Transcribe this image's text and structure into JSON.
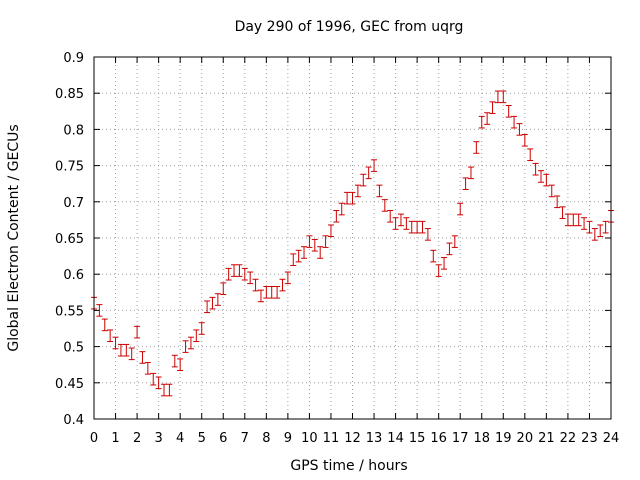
{
  "chart_data": {
    "type": "scatter",
    "title": "Day 290 of 1996, GEC from uqrg",
    "xlabel": "GPS time / hours",
    "ylabel": "Global Electron Content / GECUs",
    "xlim": [
      0,
      24
    ],
    "ylim": [
      0.4,
      0.9
    ],
    "xticks": [
      0,
      1,
      2,
      3,
      4,
      5,
      6,
      7,
      8,
      9,
      10,
      11,
      12,
      13,
      14,
      15,
      16,
      17,
      18,
      19,
      20,
      21,
      22,
      23,
      24
    ],
    "yticks": [
      0.4,
      0.45,
      0.5,
      0.55,
      0.6,
      0.65,
      0.7,
      0.75,
      0.8,
      0.85,
      0.9
    ],
    "grid": true,
    "marker": "error bars",
    "color": "#cc0000",
    "error": 0.008,
    "series": [
      {
        "x": [
          0,
          0.25,
          0.5,
          0.75,
          1,
          1.25,
          1.5,
          1.75,
          2,
          2.25,
          2.5,
          2.75,
          3,
          3.25,
          3.5,
          3.75,
          4,
          4.25,
          4.5,
          4.75,
          5,
          5.25,
          5.5,
          5.75,
          6,
          6.25,
          6.5,
          6.75,
          7,
          7.25,
          7.5,
          7.75,
          8,
          8.25,
          8.5,
          8.75,
          9,
          9.25,
          9.5,
          9.75,
          10,
          10.25,
          10.5,
          10.75,
          11,
          11.25,
          11.5,
          11.75,
          12,
          12.25,
          12.5,
          12.75,
          13,
          13.25,
          13.5,
          13.75,
          14,
          14.25,
          14.5,
          14.75,
          15,
          15.25,
          15.5,
          15.75,
          16,
          16.25,
          16.5,
          16.75,
          17,
          17.25,
          17.5,
          17.75,
          18,
          18.25,
          18.5,
          18.75,
          19,
          19.25,
          19.5,
          19.75,
          20,
          20.25,
          20.5,
          20.75,
          21,
          21.25,
          21.5,
          21.75,
          22,
          22.25,
          22.5,
          22.75,
          23,
          23.25,
          23.5,
          23.75,
          24
        ],
        "y": [
          0.56,
          0.55,
          0.53,
          0.515,
          0.505,
          0.495,
          0.495,
          0.49,
          0.52,
          0.485,
          0.47,
          0.455,
          0.45,
          0.44,
          0.44,
          0.48,
          0.475,
          0.5,
          0.505,
          0.515,
          0.525,
          0.555,
          0.56,
          0.565,
          0.58,
          0.6,
          0.605,
          0.605,
          0.6,
          0.595,
          0.585,
          0.57,
          0.575,
          0.575,
          0.575,
          0.585,
          0.595,
          0.62,
          0.625,
          0.63,
          0.645,
          0.64,
          0.63,
          0.645,
          0.66,
          0.68,
          0.69,
          0.705,
          0.705,
          0.715,
          0.73,
          0.74,
          0.75,
          0.715,
          0.695,
          0.68,
          0.67,
          0.675,
          0.67,
          0.665,
          0.665,
          0.665,
          0.655,
          0.625,
          0.605,
          0.615,
          0.635,
          0.645,
          0.69,
          0.725,
          0.74,
          0.775,
          0.81,
          0.815,
          0.83,
          0.845,
          0.845,
          0.825,
          0.81,
          0.8,
          0.785,
          0.765,
          0.745,
          0.735,
          0.73,
          0.715,
          0.7,
          0.685,
          0.675,
          0.675,
          0.675,
          0.67,
          0.665,
          0.655,
          0.66,
          0.665,
          0.68
        ]
      }
    ]
  }
}
